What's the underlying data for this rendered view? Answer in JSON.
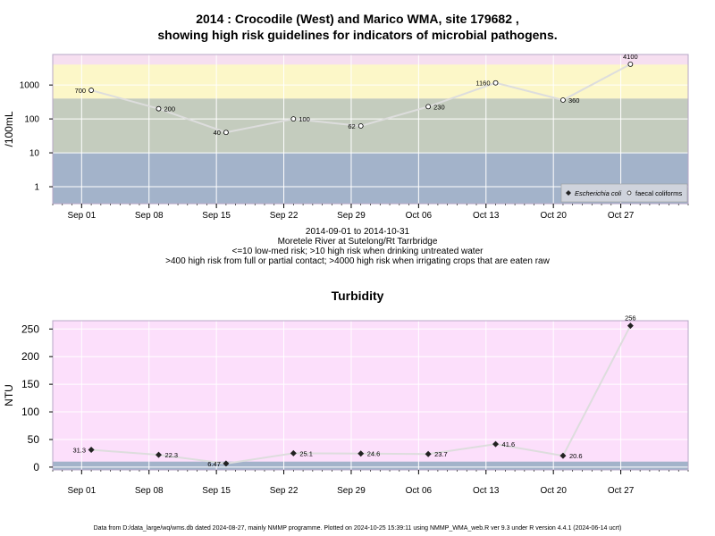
{
  "header": {
    "title_line1": "2014 : Crocodile (West) and Marico WMA, site 179682 ,",
    "title_line2": "showing high risk guidelines for indicators of microbial pathogens."
  },
  "notes": {
    "line1": "2014-09-01 to 2014-10-31",
    "line2": "Moretele River at Sutelong/Rt Tarrbridge",
    "line3": "<=10 low-med risk; >10 high risk when drinking untreated water",
    "line4": ">400 high risk from full or partial contact; >4000 high risk when irrigating crops that are eaten raw"
  },
  "turbidity_title": "Turbidity",
  "footer": "Data from D:/data_large/wq/wms.db dated 2024-08-27, mainly NMMP programme. Plotted on 2024-10-25 15:39:11 using NMMP_WMA_web.R ver 9.3 under R version 4.4.1 (2024-06-14 ucrt)",
  "colors": {
    "band_low": "#a3b3ca",
    "band_mid": "#c4ccbe",
    "band_high": "#fcf7c8",
    "band_top": "#f6dff0",
    "turb_bg": "#fcdffb",
    "turb_low": "#a3b3ca",
    "line": "#dddddd",
    "point": "#222222"
  },
  "chart_data": [
    {
      "type": "line",
      "ylabel": "/100mL",
      "y_scale": "log",
      "y_ticks": [
        "1",
        "10",
        "100",
        "1000"
      ],
      "x_ticks": [
        "Sep 01",
        "Sep 08",
        "Sep 15",
        "Sep 22",
        "Sep 29",
        "Oct 06",
        "Oct 13",
        "Oct 20",
        "Oct 27"
      ],
      "guideline_bands": [
        10,
        400,
        4000
      ],
      "legend": {
        "position": "bottom-right",
        "entries": [
          "Escherichia coli",
          "faecal coliforms"
        ]
      },
      "series": [
        {
          "name": "faecal coliforms",
          "x": [
            "2014-09-02",
            "2014-09-09",
            "2014-09-16",
            "2014-09-23",
            "2014-09-30",
            "2014-10-07",
            "2014-10-14",
            "2014-10-21",
            "2014-10-28"
          ],
          "values": [
            700,
            200,
            40,
            100,
            62,
            230,
            1160,
            360,
            4100
          ],
          "labels": [
            "700",
            "200",
            "40",
            "100",
            "62",
            "230",
            "1160",
            "360",
            "4100"
          ]
        }
      ]
    },
    {
      "type": "line",
      "title": "Turbidity",
      "ylabel": "NTU",
      "ylim": [
        -5,
        265
      ],
      "y_ticks": [
        "0",
        "50",
        "100",
        "150",
        "200",
        "250"
      ],
      "x_ticks": [
        "Sep 01",
        "Sep 08",
        "Sep 15",
        "Sep 22",
        "Sep 29",
        "Oct 06",
        "Oct 13",
        "Oct 20",
        "Oct 27"
      ],
      "series": [
        {
          "x": [
            "2014-09-02",
            "2014-09-09",
            "2014-09-16",
            "2014-09-23",
            "2014-09-30",
            "2014-10-07",
            "2014-10-14",
            "2014-10-21",
            "2014-10-28"
          ],
          "values": [
            31.3,
            22.3,
            6.47,
            25.1,
            24.6,
            23.7,
            41.6,
            20.6,
            256
          ],
          "labels": [
            "31.3",
            "22.3",
            "6.47",
            "25.1",
            "24.6",
            "23.7",
            "41.6",
            "20.6",
            "256"
          ]
        }
      ]
    }
  ]
}
